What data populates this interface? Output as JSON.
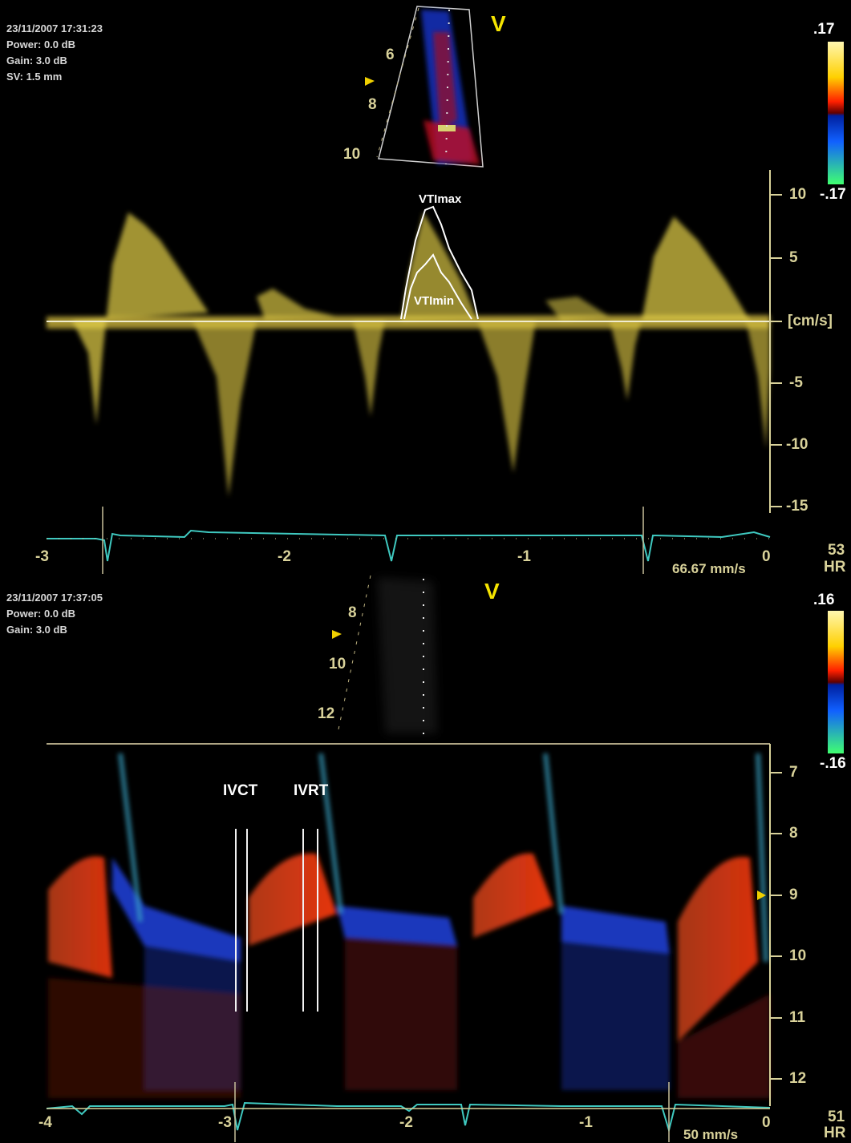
{
  "top": {
    "info": [
      "23/11/2007 17:31:23",
      "Power: 0.0 dB",
      "Gain: 3.0 dB",
      "SV: 1.5 mm"
    ],
    "view_label": "V",
    "scale_max": ".17",
    "scale_min": "-.17",
    "depth_ticks": [
      "6",
      "8",
      "10"
    ],
    "velocity_ticks": [
      "10",
      "5",
      "[cm/s]",
      "-5",
      "-10",
      "-15"
    ],
    "time_ticks": [
      "-3",
      "-2",
      "-1",
      "0"
    ],
    "vti_max": "VTImax",
    "vti_min": "VTImin",
    "sweep": "66.67 mm/s",
    "hr_value": "53",
    "hr_label": "HR"
  },
  "bottom": {
    "info": [
      "23/11/2007 17:37:05",
      "Power: 0.0 dB",
      "Gain: 3.0 dB"
    ],
    "view_label": "V",
    "scale_max": ".16",
    "scale_min": "-.16",
    "depth_ticks": [
      "8",
      "10",
      "12"
    ],
    "mmode_ticks": [
      "7",
      "8",
      "9",
      "10",
      "11",
      "12"
    ],
    "time_ticks": [
      "-4",
      "-3",
      "-2",
      "-1",
      "0"
    ],
    "ivct": "IVCT",
    "ivrt": "IVRT",
    "sweep": "50 mm/s",
    "hr_value": "51",
    "hr_label": "HR"
  },
  "colors": {
    "doppler": "#e6d24a",
    "ecg": "#3fc9c0",
    "axis": "#d9d29a",
    "mmode_red": "#e0401c",
    "mmode_blue": "#1e3fd0"
  }
}
